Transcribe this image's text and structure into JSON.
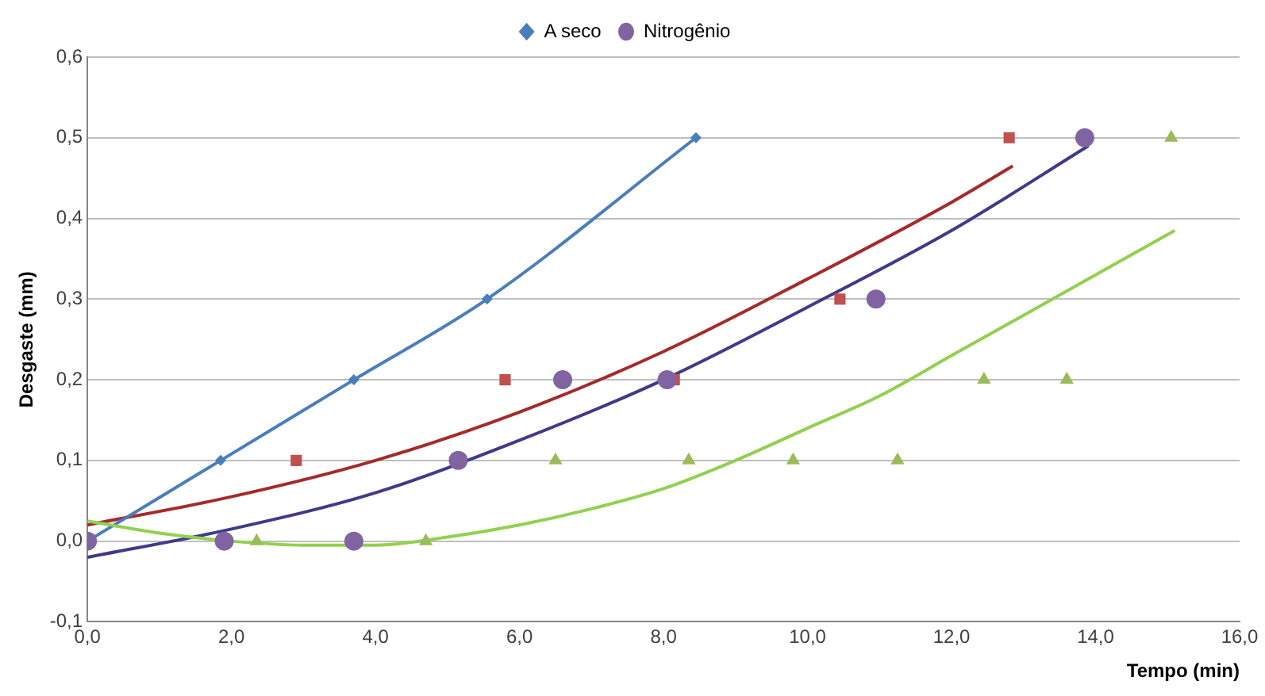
{
  "chart_data": {
    "type": "scatter",
    "xlabel": "Tempo (min)",
    "ylabel": "Desgaste (mm)",
    "xlim": [
      0,
      16
    ],
    "xticks": [
      {
        "value": 0,
        "label": "0,0"
      },
      {
        "value": 2,
        "label": "2,0"
      },
      {
        "value": 4,
        "label": "4,0"
      },
      {
        "value": 6,
        "label": "6,0"
      },
      {
        "value": 8,
        "label": "8,0"
      },
      {
        "value": 10,
        "label": "10,0"
      },
      {
        "value": 12,
        "label": "12,0"
      },
      {
        "value": 14,
        "label": "14,0"
      },
      {
        "value": 16,
        "label": "16,0"
      }
    ],
    "ylim": [
      -0.1,
      0.6
    ],
    "yticks": [
      {
        "value": -0.1,
        "label": "-0,1"
      },
      {
        "value": 0,
        "label": "0,0"
      },
      {
        "value": 0.1,
        "label": "0,1"
      },
      {
        "value": 0.2,
        "label": "0,2"
      },
      {
        "value": 0.3,
        "label": "0,3"
      },
      {
        "value": 0.4,
        "label": "0,4"
      },
      {
        "value": 0.5,
        "label": "0,5"
      },
      {
        "value": 0.6,
        "label": "0,6"
      }
    ],
    "grid": "y",
    "legend": "top",
    "series": [
      {
        "type": "scatter",
        "marker": "triangle",
        "color": "#9bbb59",
        "x": [
          2.35,
          4.7,
          6.5,
          8.35,
          9.8,
          11.25,
          12.45,
          13.6,
          15.05
        ],
        "values": [
          0,
          0,
          0.1,
          0.1,
          0.1,
          0.1,
          0.2,
          0.2,
          0.5
        ]
      },
      {
        "type": "line",
        "color": "#92d050",
        "marker": "none",
        "x": [
          0,
          1,
          2,
          3,
          4,
          5,
          6,
          7,
          8,
          9,
          10,
          11,
          12,
          13,
          14,
          15.1
        ],
        "values": [
          0.025,
          0.01,
          0,
          -0.005,
          -0.005,
          0.005,
          0.02,
          0.04,
          0.065,
          0.1,
          0.14,
          0.18,
          0.23,
          0.28,
          0.33,
          0.385
        ]
      },
      {
        "type": "line",
        "name": "A seco",
        "marker": "diamond",
        "color": "#4a7ebb",
        "x": [
          0,
          1.85,
          3.7,
          5.55,
          8.45
        ],
        "values": [
          0,
          0.1,
          0.2,
          0.3,
          0.5
        ]
      },
      {
        "type": "scatter",
        "name": "Nitrogênio",
        "marker": "circle",
        "color": "#8064a2",
        "x": [
          0,
          1.9,
          3.7,
          5.15,
          6.6,
          8.05,
          10.95,
          13.85
        ],
        "values": [
          0,
          0,
          0,
          0.1,
          0.2,
          0.2,
          0.3,
          0.5
        ]
      },
      {
        "type": "line",
        "color": "#3f3a8a",
        "marker": "none",
        "x": [
          0,
          2,
          4,
          6,
          8,
          10,
          12,
          13.9
        ],
        "values": [
          -0.02,
          0.015,
          0.06,
          0.125,
          0.2,
          0.29,
          0.385,
          0.49
        ]
      },
      {
        "type": "scatter",
        "marker": "square",
        "color": "#c0504d",
        "x": [
          2.9,
          5.8,
          8.15,
          10.45,
          12.8
        ],
        "values": [
          0.1,
          0.2,
          0.2,
          0.3,
          0.5
        ]
      },
      {
        "type": "line",
        "color": "#a52a2a",
        "marker": "none",
        "x": [
          0,
          2,
          4,
          6,
          8,
          10,
          12,
          12.85
        ],
        "values": [
          0.02,
          0.055,
          0.1,
          0.16,
          0.235,
          0.325,
          0.42,
          0.465
        ]
      }
    ]
  }
}
